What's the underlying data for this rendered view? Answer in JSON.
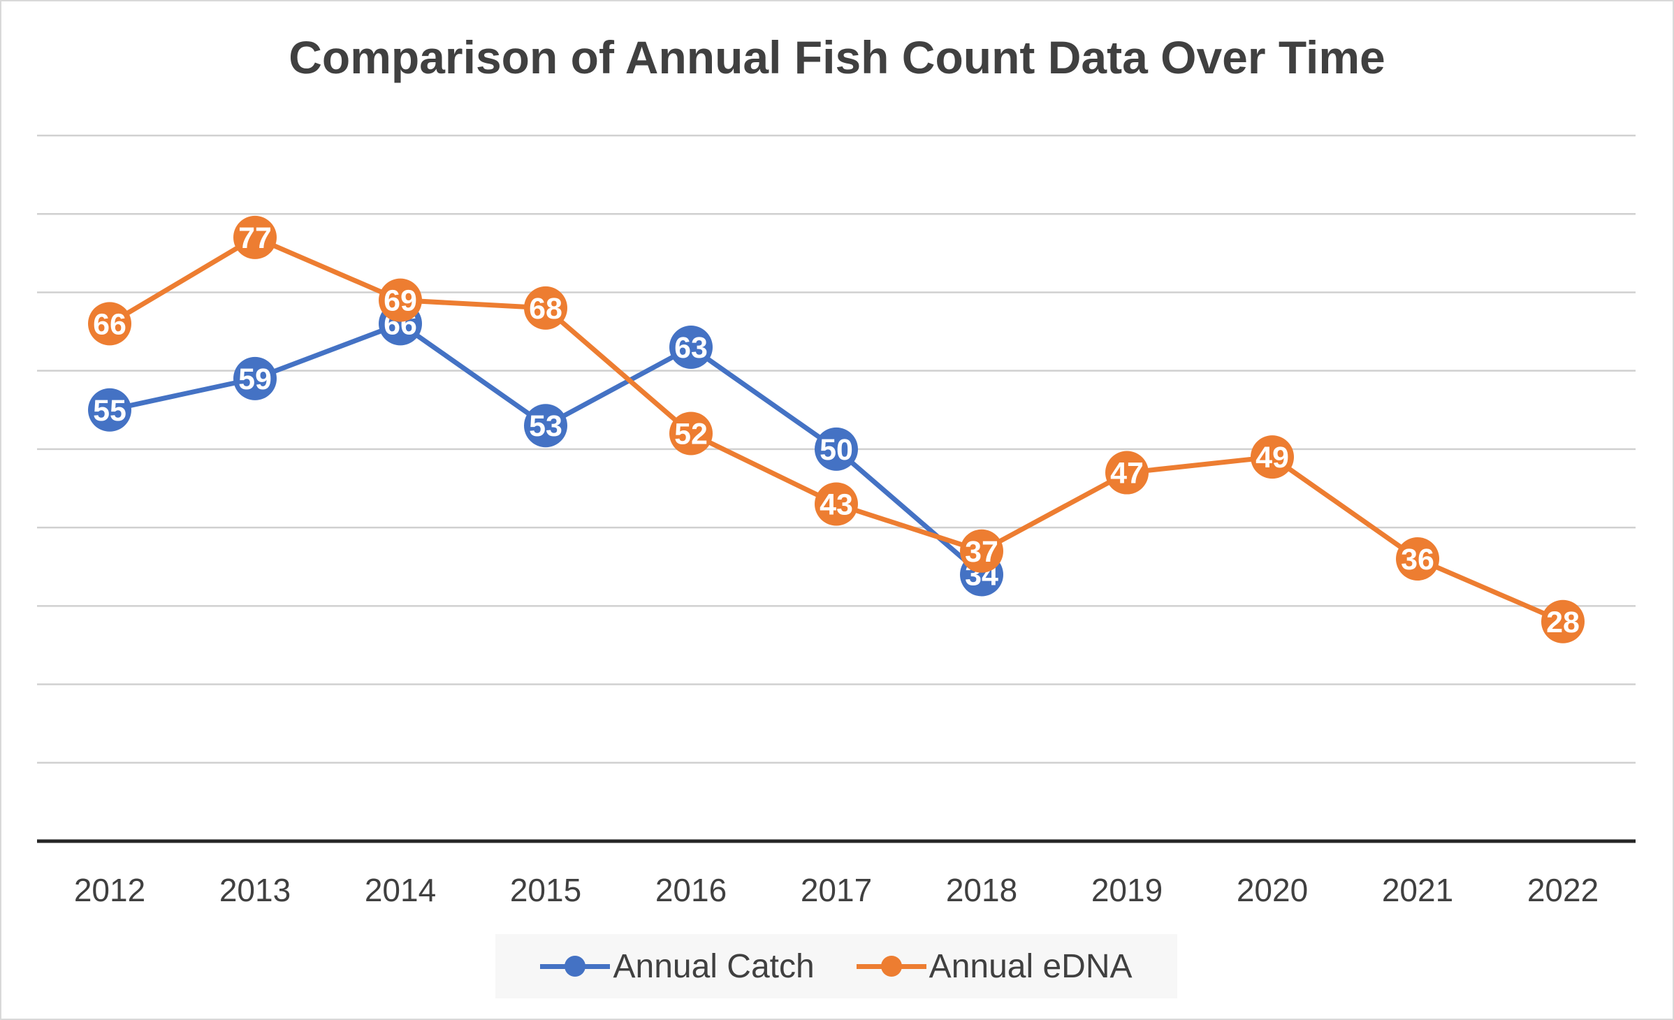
{
  "chart_data": {
    "type": "line",
    "title": "Comparison of Annual Fish Count Data Over Time",
    "xlabel": "",
    "ylabel": "",
    "categories": [
      "2012",
      "2013",
      "2014",
      "2015",
      "2016",
      "2017",
      "2018",
      "2019",
      "2020",
      "2021",
      "2022"
    ],
    "ylim": [
      0,
      90
    ],
    "y_tick_step": 10,
    "y_tick_labels_visible": false,
    "grid": true,
    "legend_position": "bottom",
    "data_labels": true,
    "series": [
      {
        "name": "Annual Catch",
        "color": "#4472C4",
        "values": [
          55,
          59,
          66,
          53,
          63,
          50,
          34,
          null,
          null,
          null,
          null
        ]
      },
      {
        "name": "Annual eDNA",
        "color": "#ED7D31",
        "values": [
          66,
          77,
          69,
          68,
          52,
          43,
          37,
          47,
          49,
          36,
          28
        ]
      }
    ]
  }
}
